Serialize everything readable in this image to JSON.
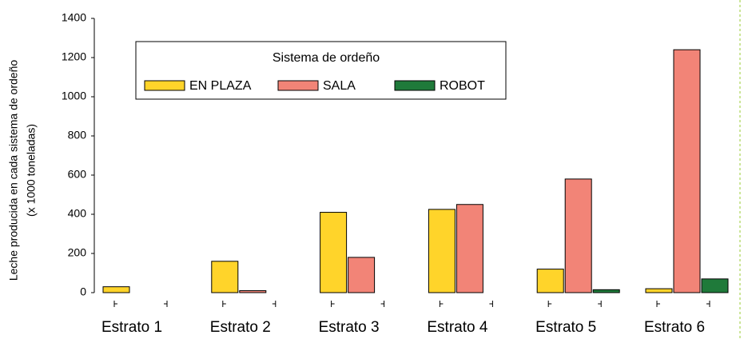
{
  "chart_data": {
    "type": "bar",
    "y_label": [
      "Leche producida en cada sistema de ordeño",
      "(x 1000 toneladas)"
    ],
    "legend_title": "Sistema de ordeño",
    "categories": [
      "Estrato 1",
      "Estrato 2",
      "Estrato 3",
      "Estrato 4",
      "Estrato 5",
      "Estrato 6"
    ],
    "series": [
      {
        "name": "EN PLAZA",
        "color": "#ffd42a",
        "values": [
          30,
          160,
          410,
          425,
          120,
          20
        ]
      },
      {
        "name": "SALA",
        "color": "#f28477",
        "values": [
          0,
          10,
          180,
          450,
          580,
          1240
        ]
      },
      {
        "name": "ROBOT",
        "color": "#1f7a3a",
        "values": [
          0,
          0,
          0,
          0,
          15,
          70
        ]
      }
    ],
    "ylim": [
      0,
      1400
    ],
    "yticks": [
      0,
      200,
      400,
      600,
      800,
      1000,
      1200,
      1400
    ]
  }
}
